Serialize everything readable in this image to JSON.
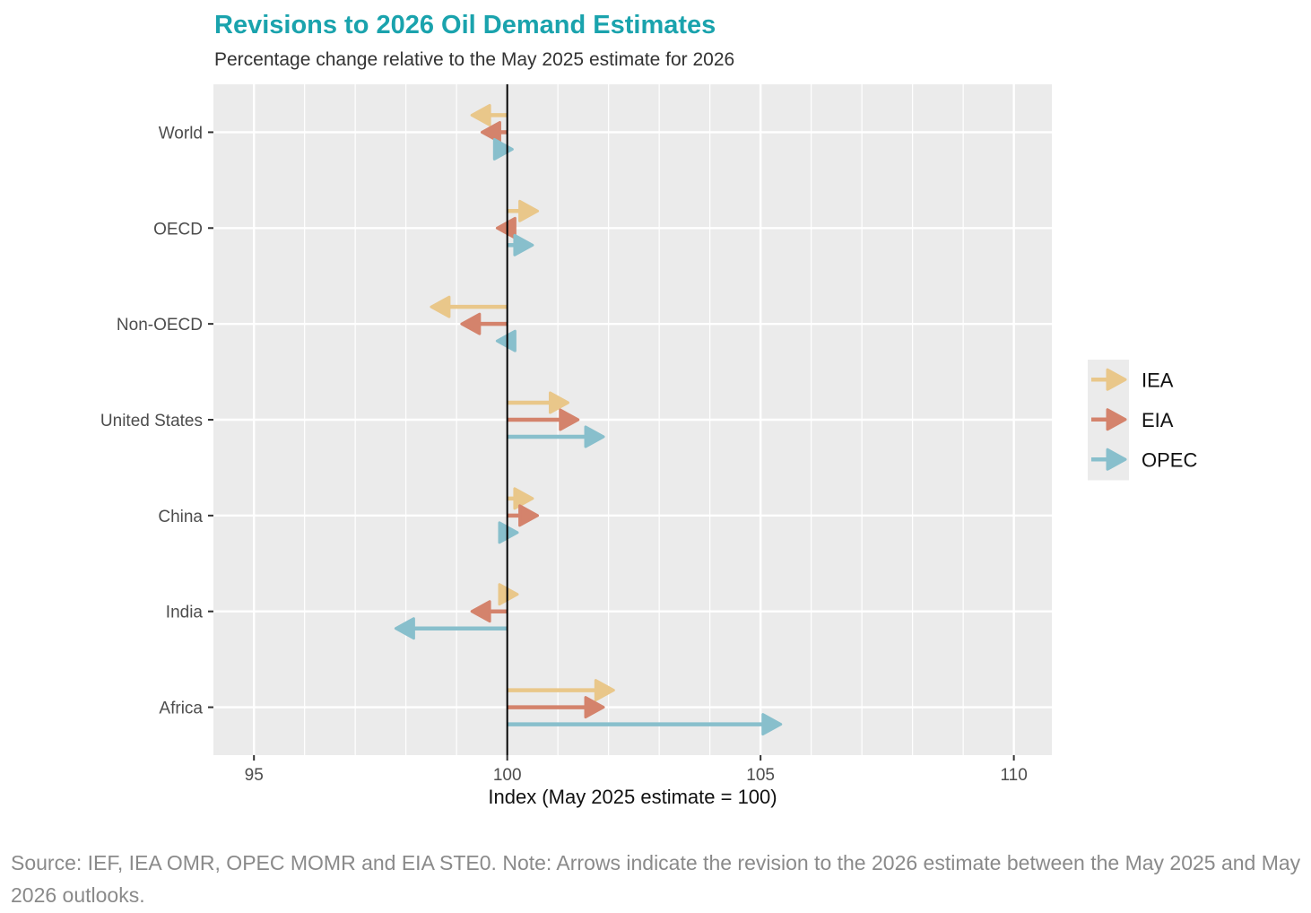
{
  "chart_data": {
    "type": "arrow-range",
    "title": "Revisions to 2026 Oil Demand Estimates",
    "subtitle": "Percentage change relative to the May 2025 estimate for 2026",
    "xlabel": "Index (May 2025 estimate = 100)",
    "xlim": [
      94.2,
      110.75
    ],
    "xticks": [
      95,
      100,
      105,
      110
    ],
    "baseline": 100,
    "grid": true,
    "legend_position": "right",
    "categories": [
      "World",
      "OECD",
      "Non-OECD",
      "United States",
      "China",
      "India",
      "Africa"
    ],
    "series": [
      {
        "name": "IEA",
        "color": "#e9c78a",
        "values": [
          99.3,
          100.6,
          98.5,
          101.2,
          100.5,
          100.2,
          102.1
        ]
      },
      {
        "name": "EIA",
        "color": "#d4836c",
        "values": [
          99.5,
          99.8,
          99.1,
          101.4,
          100.6,
          99.3,
          101.9
        ]
      },
      {
        "name": "OPEC",
        "color": "#88bfcc",
        "values": [
          100.1,
          100.5,
          99.8,
          101.9,
          100.2,
          97.8,
          105.4
        ]
      }
    ]
  },
  "source_note": "Source: IEF, IEA OMR, OPEC MOMR and EIA STE0. Note: Arrows indicate the revision to the 2026 estimate between the May 2025 and May 2026 outlooks."
}
